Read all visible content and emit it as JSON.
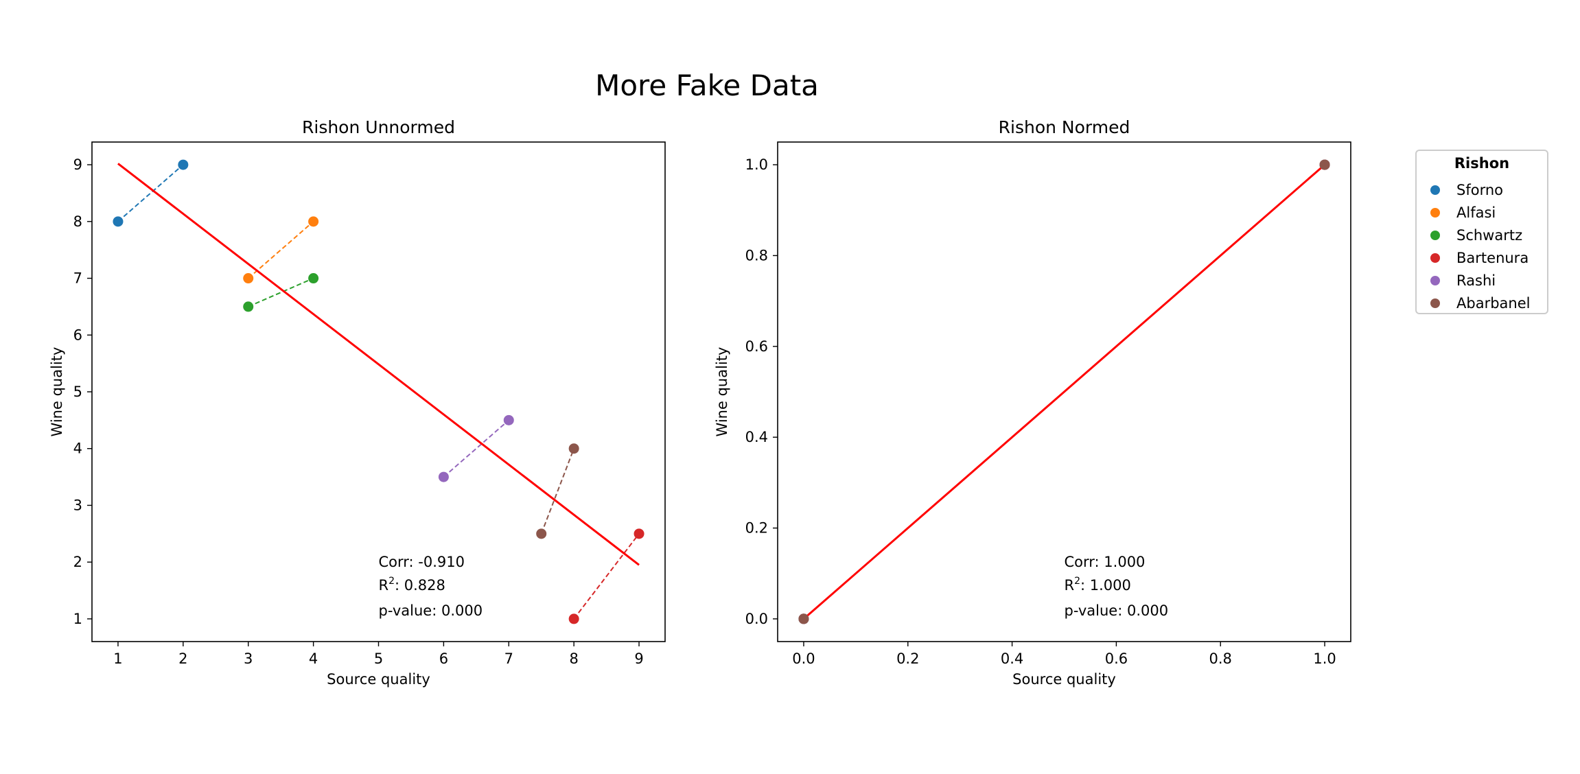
{
  "figure": {
    "title": "More Fake Data"
  },
  "legend": {
    "title": "Rishon",
    "entries": [
      {
        "name": "Sforno",
        "color": "#1f77b4"
      },
      {
        "name": "Alfasi",
        "color": "#ff7f0e"
      },
      {
        "name": "Schwartz",
        "color": "#2ca02c"
      },
      {
        "name": "Bartenura",
        "color": "#d62728"
      },
      {
        "name": "Rashi",
        "color": "#9467bd"
      },
      {
        "name": "Abarbanel",
        "color": "#8c564b"
      }
    ]
  },
  "chart_data": [
    {
      "type": "scatter",
      "title": "Rishon Unnormed",
      "xlabel": "Source quality",
      "ylabel": "Wine quality",
      "xlim": [
        0.6,
        9.4
      ],
      "ylim": [
        0.6,
        9.4
      ],
      "xticks": [
        1,
        2,
        3,
        4,
        5,
        6,
        7,
        8,
        9
      ],
      "yticks": [
        1,
        2,
        3,
        4,
        5,
        6,
        7,
        8,
        9
      ],
      "grid": false,
      "series": [
        {
          "name": "Sforno",
          "color": "#1f77b4",
          "x": [
            1,
            2
          ],
          "y": [
            8,
            9
          ]
        },
        {
          "name": "Alfasi",
          "color": "#ff7f0e",
          "x": [
            3,
            4
          ],
          "y": [
            7,
            8
          ]
        },
        {
          "name": "Schwartz",
          "color": "#2ca02c",
          "x": [
            3,
            4
          ],
          "y": [
            6.5,
            7
          ]
        },
        {
          "name": "Bartenura",
          "color": "#d62728",
          "x": [
            8,
            9
          ],
          "y": [
            1,
            2.5
          ]
        },
        {
          "name": "Rashi",
          "color": "#9467bd",
          "x": [
            6,
            7
          ],
          "y": [
            3.5,
            4.5
          ]
        },
        {
          "name": "Abarbanel",
          "color": "#8c564b",
          "x": [
            7.5,
            8
          ],
          "y": [
            2.5,
            4
          ]
        }
      ],
      "regression_line": {
        "color": "#ff0000",
        "x": [
          1,
          9
        ],
        "y": [
          9.02,
          1.95
        ]
      },
      "stats": {
        "corr": "Corr: -0.910",
        "r2_value": ": 0.828",
        "pvalue": "p-value: 0.000"
      }
    },
    {
      "type": "scatter",
      "title": "Rishon Normed",
      "xlabel": "Source quality",
      "ylabel": "Wine quality",
      "xlim": [
        -0.05,
        1.05
      ],
      "ylim": [
        -0.05,
        1.05
      ],
      "xticks": [
        0.0,
        0.2,
        0.4,
        0.6,
        0.8,
        1.0
      ],
      "yticks": [
        0.0,
        0.2,
        0.4,
        0.6,
        0.8,
        1.0
      ],
      "grid": false,
      "series": [
        {
          "name": "Sforno",
          "color": "#1f77b4",
          "x": [
            0,
            1
          ],
          "y": [
            0,
            1
          ]
        },
        {
          "name": "Alfasi",
          "color": "#ff7f0e",
          "x": [
            0,
            1
          ],
          "y": [
            0,
            1
          ]
        },
        {
          "name": "Schwartz",
          "color": "#2ca02c",
          "x": [
            0,
            1
          ],
          "y": [
            0,
            1
          ]
        },
        {
          "name": "Bartenura",
          "color": "#d62728",
          "x": [
            0,
            1
          ],
          "y": [
            0,
            1
          ]
        },
        {
          "name": "Rashi",
          "color": "#9467bd",
          "x": [
            0,
            1
          ],
          "y": [
            0,
            1
          ]
        },
        {
          "name": "Abarbanel",
          "color": "#8c564b",
          "x": [
            0,
            1
          ],
          "y": [
            0,
            1
          ]
        }
      ],
      "regression_line": {
        "color": "#ff0000",
        "x": [
          0,
          1
        ],
        "y": [
          0,
          1
        ]
      },
      "stats": {
        "corr": "Corr: 1.000",
        "r2_value": ": 1.000",
        "pvalue": "p-value: 0.000"
      }
    }
  ]
}
